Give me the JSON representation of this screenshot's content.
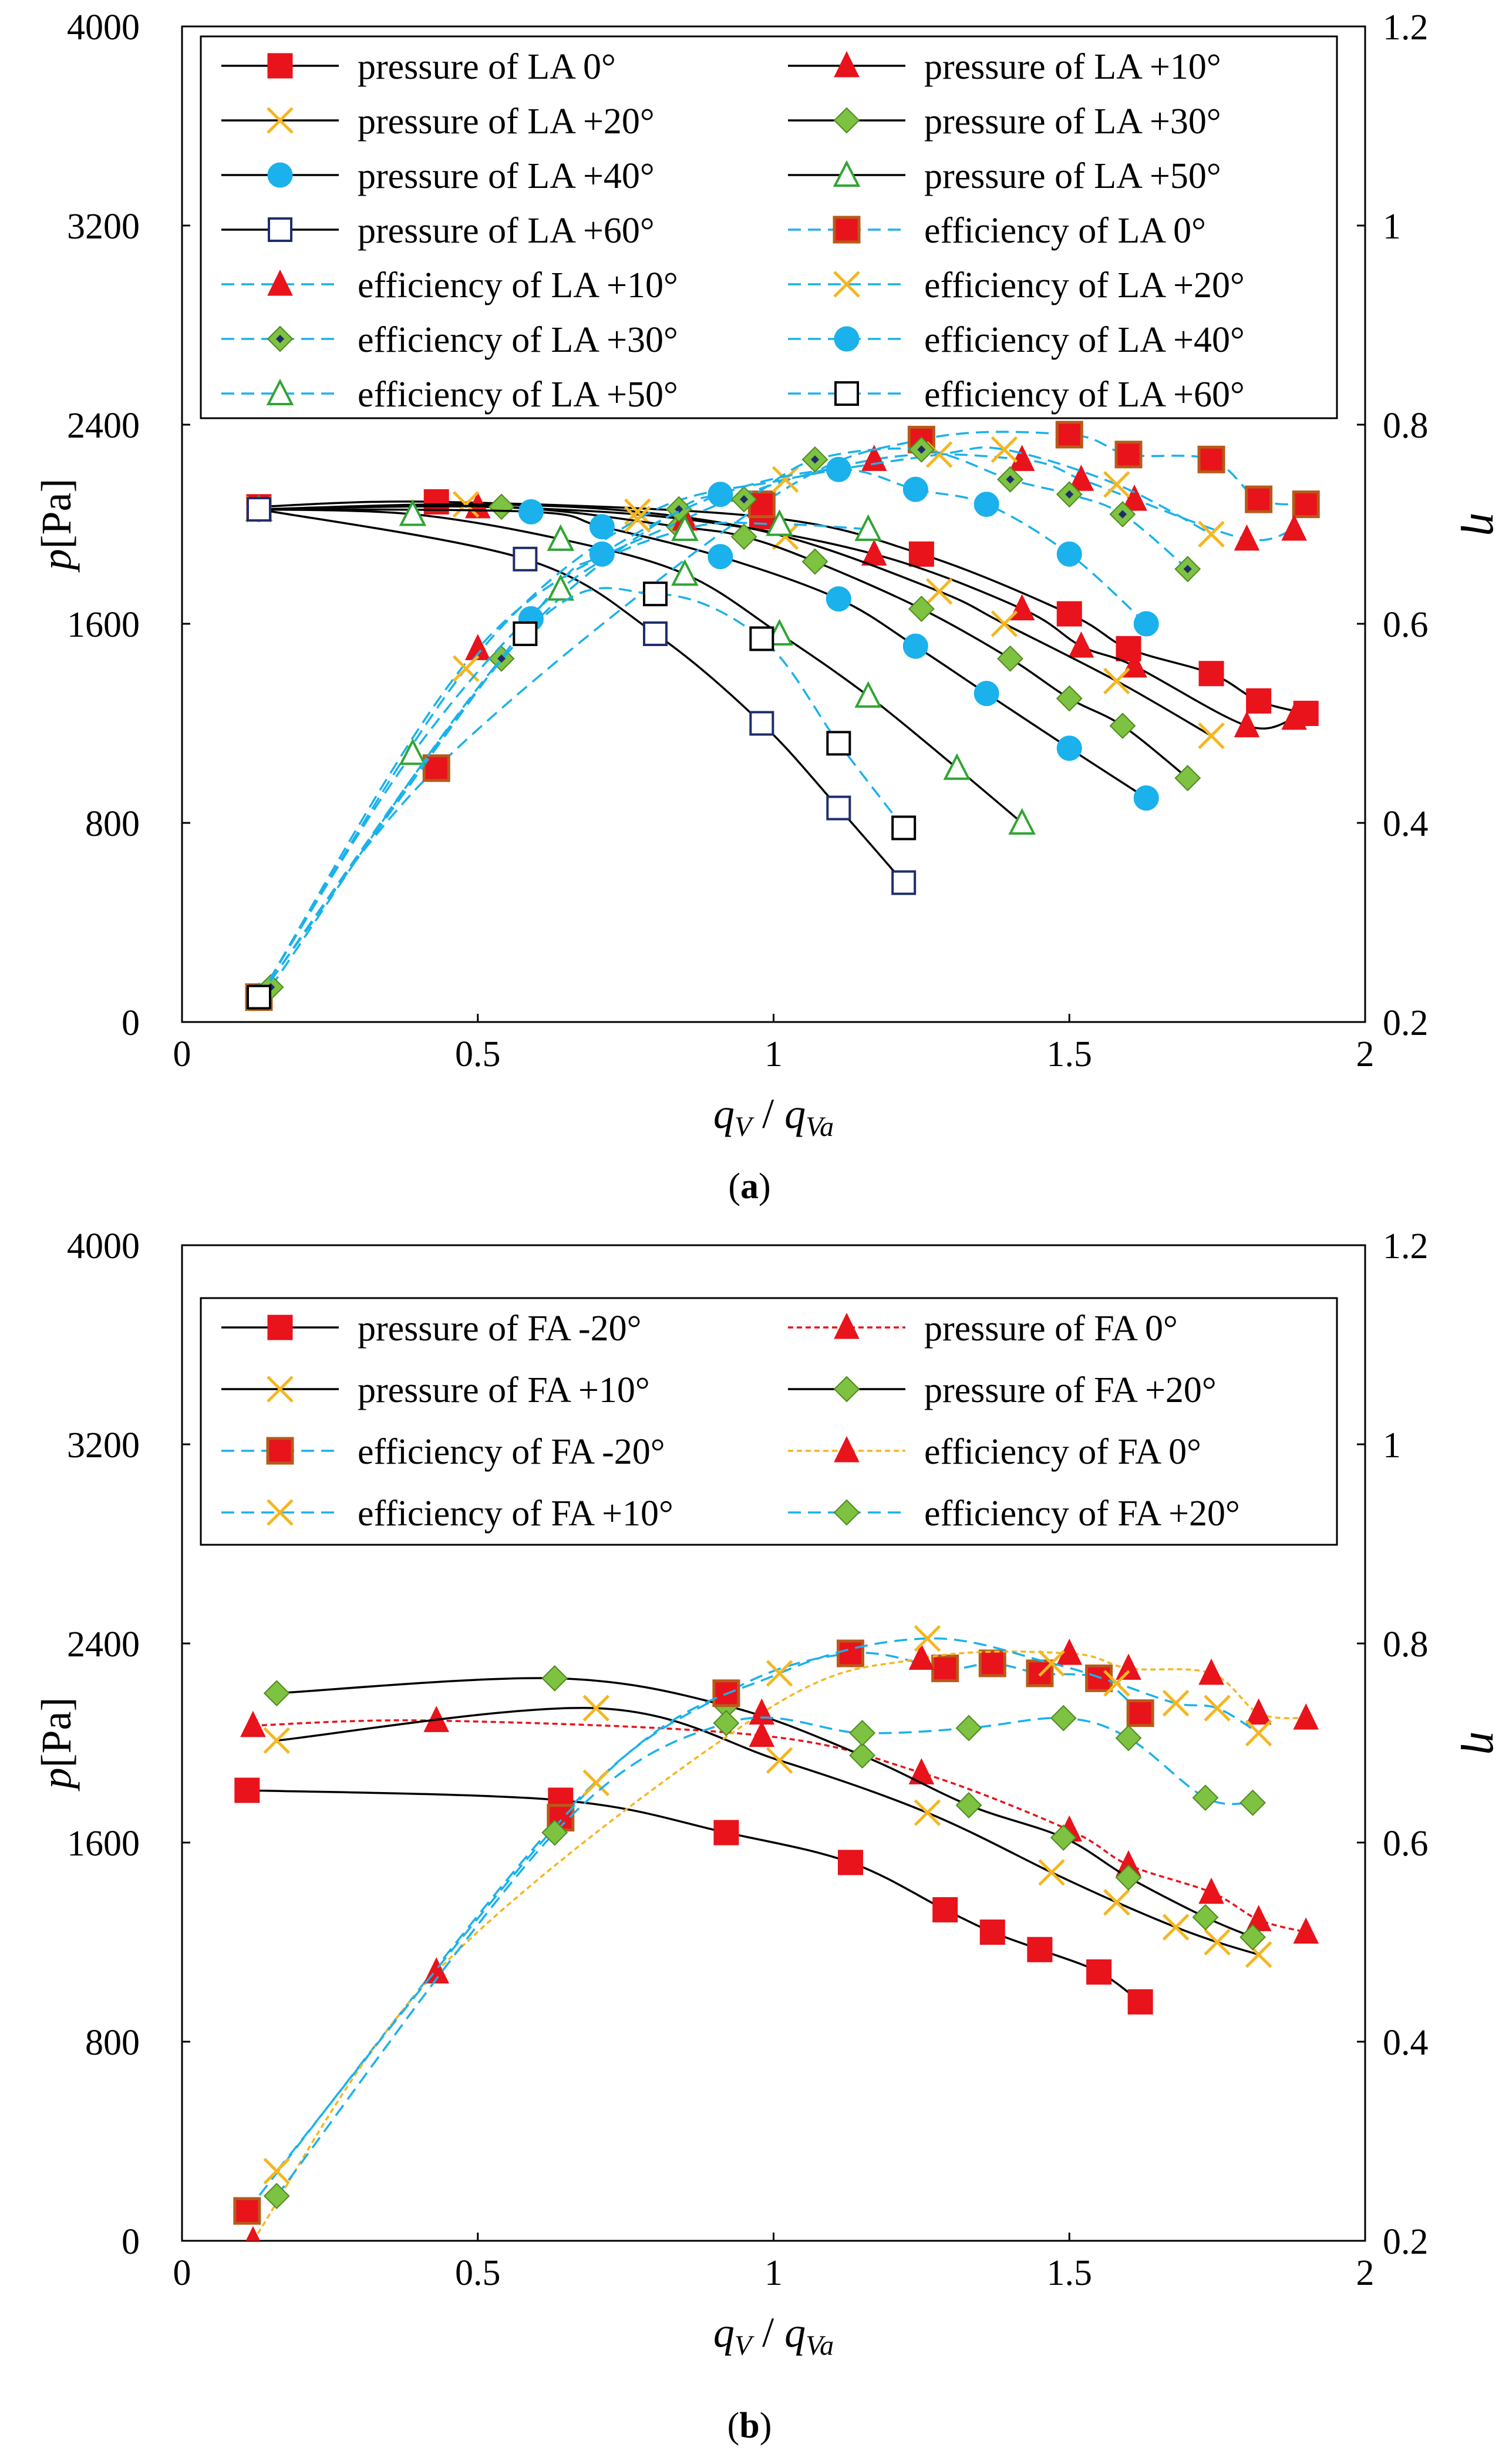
{
  "chart_data": [
    {
      "type": "line",
      "panel_label": "(a)",
      "xlabel": "q_V / q_Va",
      "xlabel_parts": {
        "q": "q",
        "sub1": "V",
        "slash": " / ",
        "q2": "q",
        "sub2": "Va"
      },
      "ylabel": "p[Pa]",
      "ylabel_parts": {
        "p": "p",
        "unit": "[Pa]"
      },
      "y2label": "η",
      "xlim": [
        0,
        2
      ],
      "ylim": [
        0,
        4000
      ],
      "y2lim": [
        0.2,
        1.2
      ],
      "xticks": [
        0,
        0.5,
        1,
        1.5,
        2
      ],
      "xtick_labels": [
        "0",
        "0.5",
        "1",
        "1.5",
        "2"
      ],
      "yticks": [
        0,
        800,
        1600,
        2400,
        3200,
        4000
      ],
      "ytick_labels": [
        "0",
        "800",
        "1600",
        "2400",
        "3200",
        "4000"
      ],
      "y2ticks": [
        0.2,
        0.4,
        0.6,
        0.8,
        1,
        1.2
      ],
      "y2tick_labels": [
        "0.2",
        "0.4",
        "0.6",
        "0.8",
        "1",
        "1.2"
      ],
      "legend_position": "top",
      "series": [
        {
          "name": "pressure of LA 0°",
          "axis": "left",
          "line": "solid",
          "line_color": "#000000",
          "marker": "square",
          "marker_color": "#e8131b",
          "x": [
            0.13,
            0.43,
            0.98,
            1.25,
            1.5,
            1.6,
            1.74,
            1.82,
            1.9
          ],
          "y": [
            2070,
            2090,
            2030,
            1880,
            1640,
            1500,
            1400,
            1290,
            1240
          ]
        },
        {
          "name": "pressure of LA +10°",
          "axis": "left",
          "line": "solid",
          "line_color": "#000000",
          "marker": "triangle",
          "marker_color": "#e8131b",
          "x": [
            0.13,
            0.5,
            0.85,
            1.17,
            1.42,
            1.52,
            1.61,
            1.8,
            1.88
          ],
          "y": [
            2060,
            2070,
            2020,
            1880,
            1660,
            1510,
            1430,
            1190,
            1220
          ]
        },
        {
          "name": "pressure of LA +20°",
          "axis": "left",
          "line": "solid",
          "line_color": "#000000",
          "marker": "x",
          "marker_color": "#f5b620",
          "x": [
            0.13,
            0.48,
            0.77,
            1.02,
            1.28,
            1.39,
            1.58,
            1.74
          ],
          "y": [
            2060,
            2080,
            2050,
            1950,
            1730,
            1600,
            1370,
            1150
          ]
        },
        {
          "name": "pressure of LA +30°",
          "axis": "left",
          "line": "solid",
          "line_color": "#000000",
          "marker": "diamond",
          "marker_color": "#7dc241",
          "x": [
            0.13,
            0.54,
            0.84,
            0.95,
            1.07,
            1.25,
            1.4,
            1.5,
            1.59,
            1.7
          ],
          "y": [
            2060,
            2070,
            1990,
            1950,
            1850,
            1660,
            1460,
            1300,
            1190,
            980
          ]
        },
        {
          "name": "pressure of LA +40°",
          "axis": "left",
          "line": "solid",
          "line_color": "#000000",
          "marker": "circle",
          "marker_color": "#1ab1ec",
          "x": [
            0.13,
            0.59,
            0.71,
            0.91,
            1.11,
            1.24,
            1.36,
            1.5,
            1.63
          ],
          "y": [
            2060,
            2050,
            1990,
            1870,
            1700,
            1510,
            1320,
            1100,
            900
          ]
        },
        {
          "name": "pressure of LA +50°",
          "axis": "left",
          "line": "solid",
          "line_color": "#000000",
          "marker": "triangle-open",
          "marker_color": "#2fa532",
          "x": [
            0.13,
            0.39,
            0.64,
            0.85,
            1.01,
            1.16,
            1.31,
            1.42
          ],
          "y": [
            2060,
            2040,
            1940,
            1800,
            1560,
            1310,
            1020,
            800
          ]
        },
        {
          "name": "pressure of LA +60°",
          "axis": "left",
          "line": "solid",
          "line_color": "#000000",
          "marker": "square-open",
          "marker_color": "#1f2d6b",
          "x": [
            0.13,
            0.58,
            0.8,
            0.98,
            1.11,
            1.22
          ],
          "y": [
            2060,
            1860,
            1560,
            1200,
            860,
            560
          ]
        },
        {
          "name": "efficiency of LA 0°",
          "axis": "right",
          "line": "dashed",
          "line_color": "#1ab1ec",
          "marker": "square",
          "marker_color": "#ab4411",
          "x": [
            0.13,
            0.43,
            0.98,
            1.25,
            1.5,
            1.6,
            1.74,
            1.82,
            1.9
          ],
          "y": [
            0.225,
            0.455,
            0.72,
            0.785,
            0.79,
            0.77,
            0.765,
            0.725,
            0.72
          ]
        },
        {
          "name": "efficiency of LA +10°",
          "axis": "right",
          "line": "dashed",
          "line_color": "#1ab1ec",
          "marker": "triangle",
          "marker_color": "#e8131b",
          "x": [
            0.13,
            0.5,
            0.85,
            1.17,
            1.42,
            1.52,
            1.61,
            1.8,
            1.88
          ],
          "y": [
            0.225,
            0.575,
            0.705,
            0.765,
            0.765,
            0.745,
            0.725,
            0.685,
            0.695
          ]
        },
        {
          "name": "efficiency of LA +20°",
          "axis": "right",
          "line": "dashed",
          "line_color": "#1ab1ec",
          "marker": "x",
          "marker_color": "#f5b620",
          "x": [
            0.13,
            0.48,
            0.77,
            1.02,
            1.28,
            1.39,
            1.58,
            1.74
          ],
          "y": [
            0.225,
            0.555,
            0.705,
            0.745,
            0.77,
            0.775,
            0.74,
            0.69
          ]
        },
        {
          "name": "efficiency of LA +30°",
          "axis": "right",
          "line": "dashed",
          "line_color": "#1ab1ec",
          "marker": "diamond",
          "marker_color": "#7dc241",
          "x": [
            0.15,
            0.54,
            0.84,
            0.95,
            1.07,
            1.25,
            1.4,
            1.5,
            1.59,
            1.7
          ],
          "y": [
            0.235,
            0.565,
            0.715,
            0.725,
            0.765,
            0.775,
            0.745,
            0.73,
            0.71,
            0.655
          ]
        },
        {
          "name": "efficiency of LA +40°",
          "axis": "right",
          "line": "dashed",
          "line_color": "#1ab1ec",
          "marker": "circle",
          "marker_color": "#1ab1ec",
          "x": [
            0.13,
            0.59,
            0.71,
            0.91,
            1.11,
            1.24,
            1.36,
            1.5,
            1.63
          ],
          "y": [
            0.225,
            0.605,
            0.67,
            0.73,
            0.755,
            0.735,
            0.72,
            0.67,
            0.6
          ]
        },
        {
          "name": "efficiency of LA +50°",
          "axis": "right",
          "line": "dashed",
          "line_color": "#1ab1ec",
          "marker": "triangle-open",
          "marker_color": "#2fa532",
          "x": [
            0.13,
            0.39,
            0.64,
            0.85,
            1.01,
            1.16
          ],
          "y": [
            0.225,
            0.47,
            0.635,
            0.695,
            0.7,
            0.695
          ]
        },
        {
          "name": "efficiency of LA +60°",
          "axis": "right",
          "line": "dashed",
          "line_color": "#1ab1ec",
          "marker": "square-open",
          "marker_color": "#000000",
          "x": [
            0.13,
            0.58,
            0.8,
            0.98,
            1.11,
            1.22
          ],
          "y": [
            0.225,
            0.59,
            0.63,
            0.585,
            0.48,
            0.395
          ]
        }
      ]
    },
    {
      "type": "line",
      "panel_label": "(b)",
      "xlabel": "q_V / q_Va",
      "xlabel_parts": {
        "q": "q",
        "sub1": "V",
        "slash": " / ",
        "q2": "q",
        "sub2": "Va"
      },
      "ylabel": "p[Pa]",
      "ylabel_parts": {
        "p": "p",
        "unit": "[Pa]"
      },
      "y2label": "η",
      "xlim": [
        0,
        2
      ],
      "ylim": [
        0,
        4000
      ],
      "y2lim": [
        0.2,
        1.2
      ],
      "xticks": [
        0,
        0.5,
        1,
        1.5,
        2
      ],
      "xtick_labels": [
        "0",
        "0.5",
        "1",
        "1.5",
        "2"
      ],
      "yticks": [
        0,
        800,
        1600,
        2400,
        3200,
        4000
      ],
      "ytick_labels": [
        "0",
        "800",
        "1600",
        "2400",
        "3200",
        "4000"
      ],
      "y2ticks": [
        0.2,
        0.4,
        0.6,
        0.8,
        1,
        1.2
      ],
      "y2tick_labels": [
        "0.2",
        "0.4",
        "0.6",
        "0.8",
        "1",
        "1.2"
      ],
      "legend_position": "top",
      "series": [
        {
          "name": "pressure of FA -20°",
          "axis": "left",
          "line": "solid",
          "line_color": "#000000",
          "marker": "square",
          "marker_color": "#e8131b",
          "x": [
            0.11,
            0.64,
            0.92,
            1.13,
            1.29,
            1.37,
            1.45,
            1.55,
            1.62
          ],
          "y": [
            1810,
            1770,
            1640,
            1520,
            1330,
            1240,
            1170,
            1080,
            960
          ]
        },
        {
          "name": "pressure of FA 0°",
          "axis": "left",
          "line": "dotted",
          "line_color": "#e8131b",
          "marker": "triangle",
          "marker_color": "#e8131b",
          "x": [
            0.12,
            0.43,
            0.98,
            1.25,
            1.5,
            1.6,
            1.74,
            1.82,
            1.9
          ],
          "y": [
            2070,
            2090,
            2030,
            1880,
            1650,
            1510,
            1400,
            1290,
            1240
          ]
        },
        {
          "name": "pressure of FA +10°",
          "axis": "left",
          "line": "solid",
          "line_color": "#000000",
          "marker": "x",
          "marker_color": "#f5b620",
          "x": [
            0.16,
            0.7,
            1.01,
            1.26,
            1.47,
            1.58,
            1.68,
            1.75,
            1.82
          ],
          "y": [
            2010,
            2140,
            1930,
            1720,
            1480,
            1360,
            1260,
            1200,
            1150
          ]
        },
        {
          "name": "pressure of FA +20°",
          "axis": "left",
          "line": "solid",
          "line_color": "#000000",
          "marker": "diamond",
          "marker_color": "#7dc241",
          "x": [
            0.16,
            0.63,
            0.92,
            1.15,
            1.33,
            1.49,
            1.6,
            1.73,
            1.81
          ],
          "y": [
            2200,
            2260,
            2150,
            1950,
            1750,
            1620,
            1460,
            1300,
            1220
          ]
        },
        {
          "name": "efficiency of FA -20°",
          "axis": "right",
          "line": "dashed",
          "line_color": "#1ab1ec",
          "marker": "square",
          "marker_color": "#ab4411",
          "x": [
            0.11,
            0.64,
            0.92,
            1.13,
            1.29,
            1.37,
            1.45,
            1.55,
            1.62
          ],
          "y": [
            0.23,
            0.625,
            0.75,
            0.79,
            0.775,
            0.78,
            0.77,
            0.765,
            0.73
          ]
        },
        {
          "name": "efficiency of FA 0°",
          "axis": "right",
          "line": "dotted",
          "line_color": "#f5b620",
          "marker": "triangle",
          "marker_color": "#e8131b",
          "x": [
            0.12,
            0.43,
            0.98,
            1.25,
            1.5,
            1.6,
            1.74,
            1.82,
            1.9
          ],
          "y": [
            0.2,
            0.47,
            0.73,
            0.785,
            0.79,
            0.775,
            0.77,
            0.73,
            0.725
          ]
        },
        {
          "name": "efficiency of FA +10°",
          "axis": "right",
          "line": "dashed",
          "line_color": "#1ab1ec",
          "marker": "x",
          "marker_color": "#f5b620",
          "x": [
            0.16,
            0.7,
            1.01,
            1.26,
            1.47,
            1.58,
            1.68,
            1.75,
            1.82
          ],
          "y": [
            0.27,
            0.66,
            0.77,
            0.805,
            0.78,
            0.76,
            0.74,
            0.735,
            0.71
          ]
        },
        {
          "name": "efficiency of FA +20°",
          "axis": "right",
          "line": "dashed",
          "line_color": "#1ab1ec",
          "marker": "diamond",
          "marker_color": "#7dc241",
          "x": [
            0.16,
            0.63,
            0.92,
            1.15,
            1.33,
            1.49,
            1.6,
            1.73,
            1.81
          ],
          "y": [
            0.245,
            0.61,
            0.72,
            0.71,
            0.715,
            0.725,
            0.705,
            0.645,
            0.64
          ]
        }
      ]
    }
  ]
}
